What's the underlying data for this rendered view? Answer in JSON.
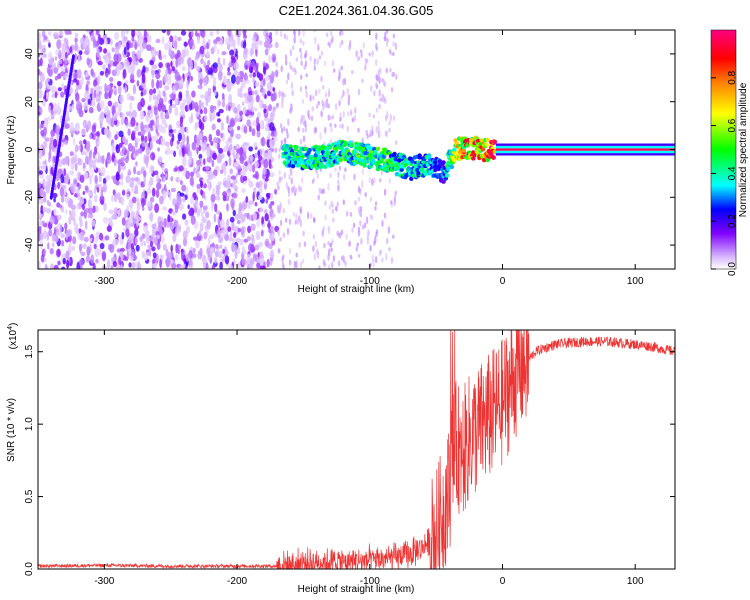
{
  "title": "C2E1.2024.361.04.36.G05",
  "chart_data": [
    {
      "type": "heatmap",
      "xlabel": "Height of straight line (km)",
      "ylabel": "Frequency (Hz)",
      "xlim": [
        -350,
        130
      ],
      "ylim": [
        -50,
        50
      ],
      "x_ticks": [
        -300,
        -200,
        -100,
        0,
        100
      ],
      "y_ticks": [
        -40,
        -20,
        0,
        20,
        40
      ],
      "colorbar": {
        "label": "Normalized spectral amplitude",
        "range": [
          0,
          1
        ],
        "ticks": [
          "0.0",
          "0.2",
          "0.4",
          "0.6",
          "0.8"
        ],
        "colormap": [
          "#ffffff",
          "#c8a0ff",
          "#8000ff",
          "#0000ff",
          "#00ffff",
          "#00ff00",
          "#ffff00",
          "#ff8000",
          "#ff0000",
          "#ff0080"
        ]
      },
      "features": {
        "noise_region_x": [
          -350,
          -170
        ],
        "weak_scatter_x": [
          -170,
          -80
        ],
        "tracked_band": [
          {
            "x": -165,
            "y": -2,
            "amp": 0.45
          },
          {
            "x": -150,
            "y": -4,
            "amp": 0.5
          },
          {
            "x": -135,
            "y": -3,
            "amp": 0.45
          },
          {
            "x": -120,
            "y": -1,
            "amp": 0.5
          },
          {
            "x": -100,
            "y": -3,
            "amp": 0.55
          },
          {
            "x": -85,
            "y": -5,
            "amp": 0.5
          },
          {
            "x": -70,
            "y": -8,
            "amp": 0.45
          },
          {
            "x": -55,
            "y": -6,
            "amp": 0.4
          },
          {
            "x": -45,
            "y": -10,
            "amp": 0.3
          },
          {
            "x": -35,
            "y": 0,
            "amp": 0.7
          },
          {
            "x": -25,
            "y": 1,
            "amp": 0.9
          },
          {
            "x": -15,
            "y": 0,
            "amp": 0.85
          },
          {
            "x": 0,
            "y": 0,
            "amp": 0.95
          },
          {
            "x": 50,
            "y": 0,
            "amp": 1.0
          },
          {
            "x": 130,
            "y": 0,
            "amp": 1.0
          }
        ],
        "diagonal_streak": [
          [
            -340,
            -20
          ],
          [
            -323,
            40
          ]
        ]
      }
    },
    {
      "type": "line",
      "xlabel": "Height of straight line (km)",
      "ylabel": "SNR (10 * v/v)",
      "y_multiplier": "(x10",
      "y_multiplier_exp": "4",
      "y_multiplier_close": ")",
      "xlim": [
        -350,
        130
      ],
      "ylim": [
        0,
        1.65
      ],
      "x_ticks": [
        -300,
        -200,
        -100,
        0,
        100
      ],
      "y_ticks": [
        "0.0",
        "0.5",
        "1.0",
        "1.5"
      ],
      "series": [
        {
          "color": "#ee3333",
          "x": [
            -350,
            -300,
            -250,
            -200,
            -170,
            -160,
            -150,
            -140,
            -120,
            -100,
            -80,
            -70,
            -60,
            -50,
            -45,
            -40,
            -38,
            -35,
            -30,
            -25,
            -20,
            -15,
            -10,
            -5,
            0,
            5,
            10,
            15,
            20,
            25,
            30,
            40,
            50,
            60,
            70,
            80,
            90,
            100,
            110,
            120,
            130
          ],
          "y": [
            0.02,
            0.025,
            0.02,
            0.02,
            0.02,
            0.03,
            0.04,
            0.05,
            0.05,
            0.06,
            0.08,
            0.1,
            0.15,
            0.25,
            0.4,
            0.55,
            0.75,
            0.85,
            0.8,
            0.9,
            0.95,
            1.0,
            1.05,
            1.1,
            1.15,
            1.25,
            1.35,
            1.4,
            1.45,
            1.5,
            1.52,
            1.55,
            1.56,
            1.57,
            1.57,
            1.57,
            1.56,
            1.55,
            1.54,
            1.52,
            1.5
          ]
        }
      ]
    }
  ]
}
